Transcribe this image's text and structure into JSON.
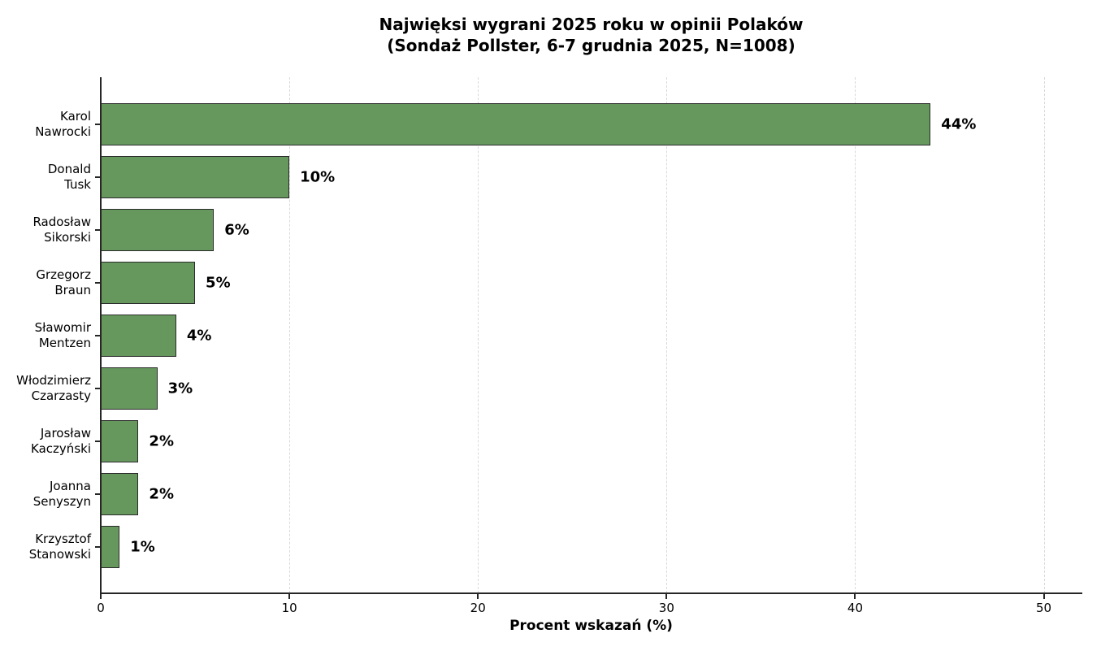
{
  "chart_data": {
    "type": "bar",
    "orientation": "horizontal",
    "title": "Najwięksi wygrani 2025 roku w opinii Polaków",
    "subtitle": "(Sondaż Pollster, 6-7 grudnia 2025, N=1008)",
    "categories": [
      "Karol\nNawrocki",
      "Donald\nTusk",
      "Radosław\nSikorski",
      "Grzegorz\nBraun",
      "Sławomir\nMentzen",
      "Włodzimierz\nCzarzasty",
      "Jarosław\nKaczyński",
      "Joanna\nSenyszyn",
      "Krzysztof\nStanowski"
    ],
    "values": [
      44,
      10,
      6,
      5,
      4,
      3,
      2,
      2,
      1
    ],
    "value_labels": [
      "44%",
      "10%",
      "6%",
      "5%",
      "4%",
      "3%",
      "2%",
      "2%",
      "1%"
    ],
    "xlabel": "Procent wskazań (%)",
    "xlim": [
      0,
      52
    ],
    "xticks": [
      0,
      10,
      20,
      30,
      40,
      50
    ],
    "xtick_labels": [
      "0",
      "10",
      "20",
      "30",
      "40",
      "50"
    ],
    "grid": "vertical-dashed",
    "legend": "none",
    "bar_color": "#66985e",
    "bar_edge_color": "#2a2a2a",
    "background": "#ffffff"
  }
}
